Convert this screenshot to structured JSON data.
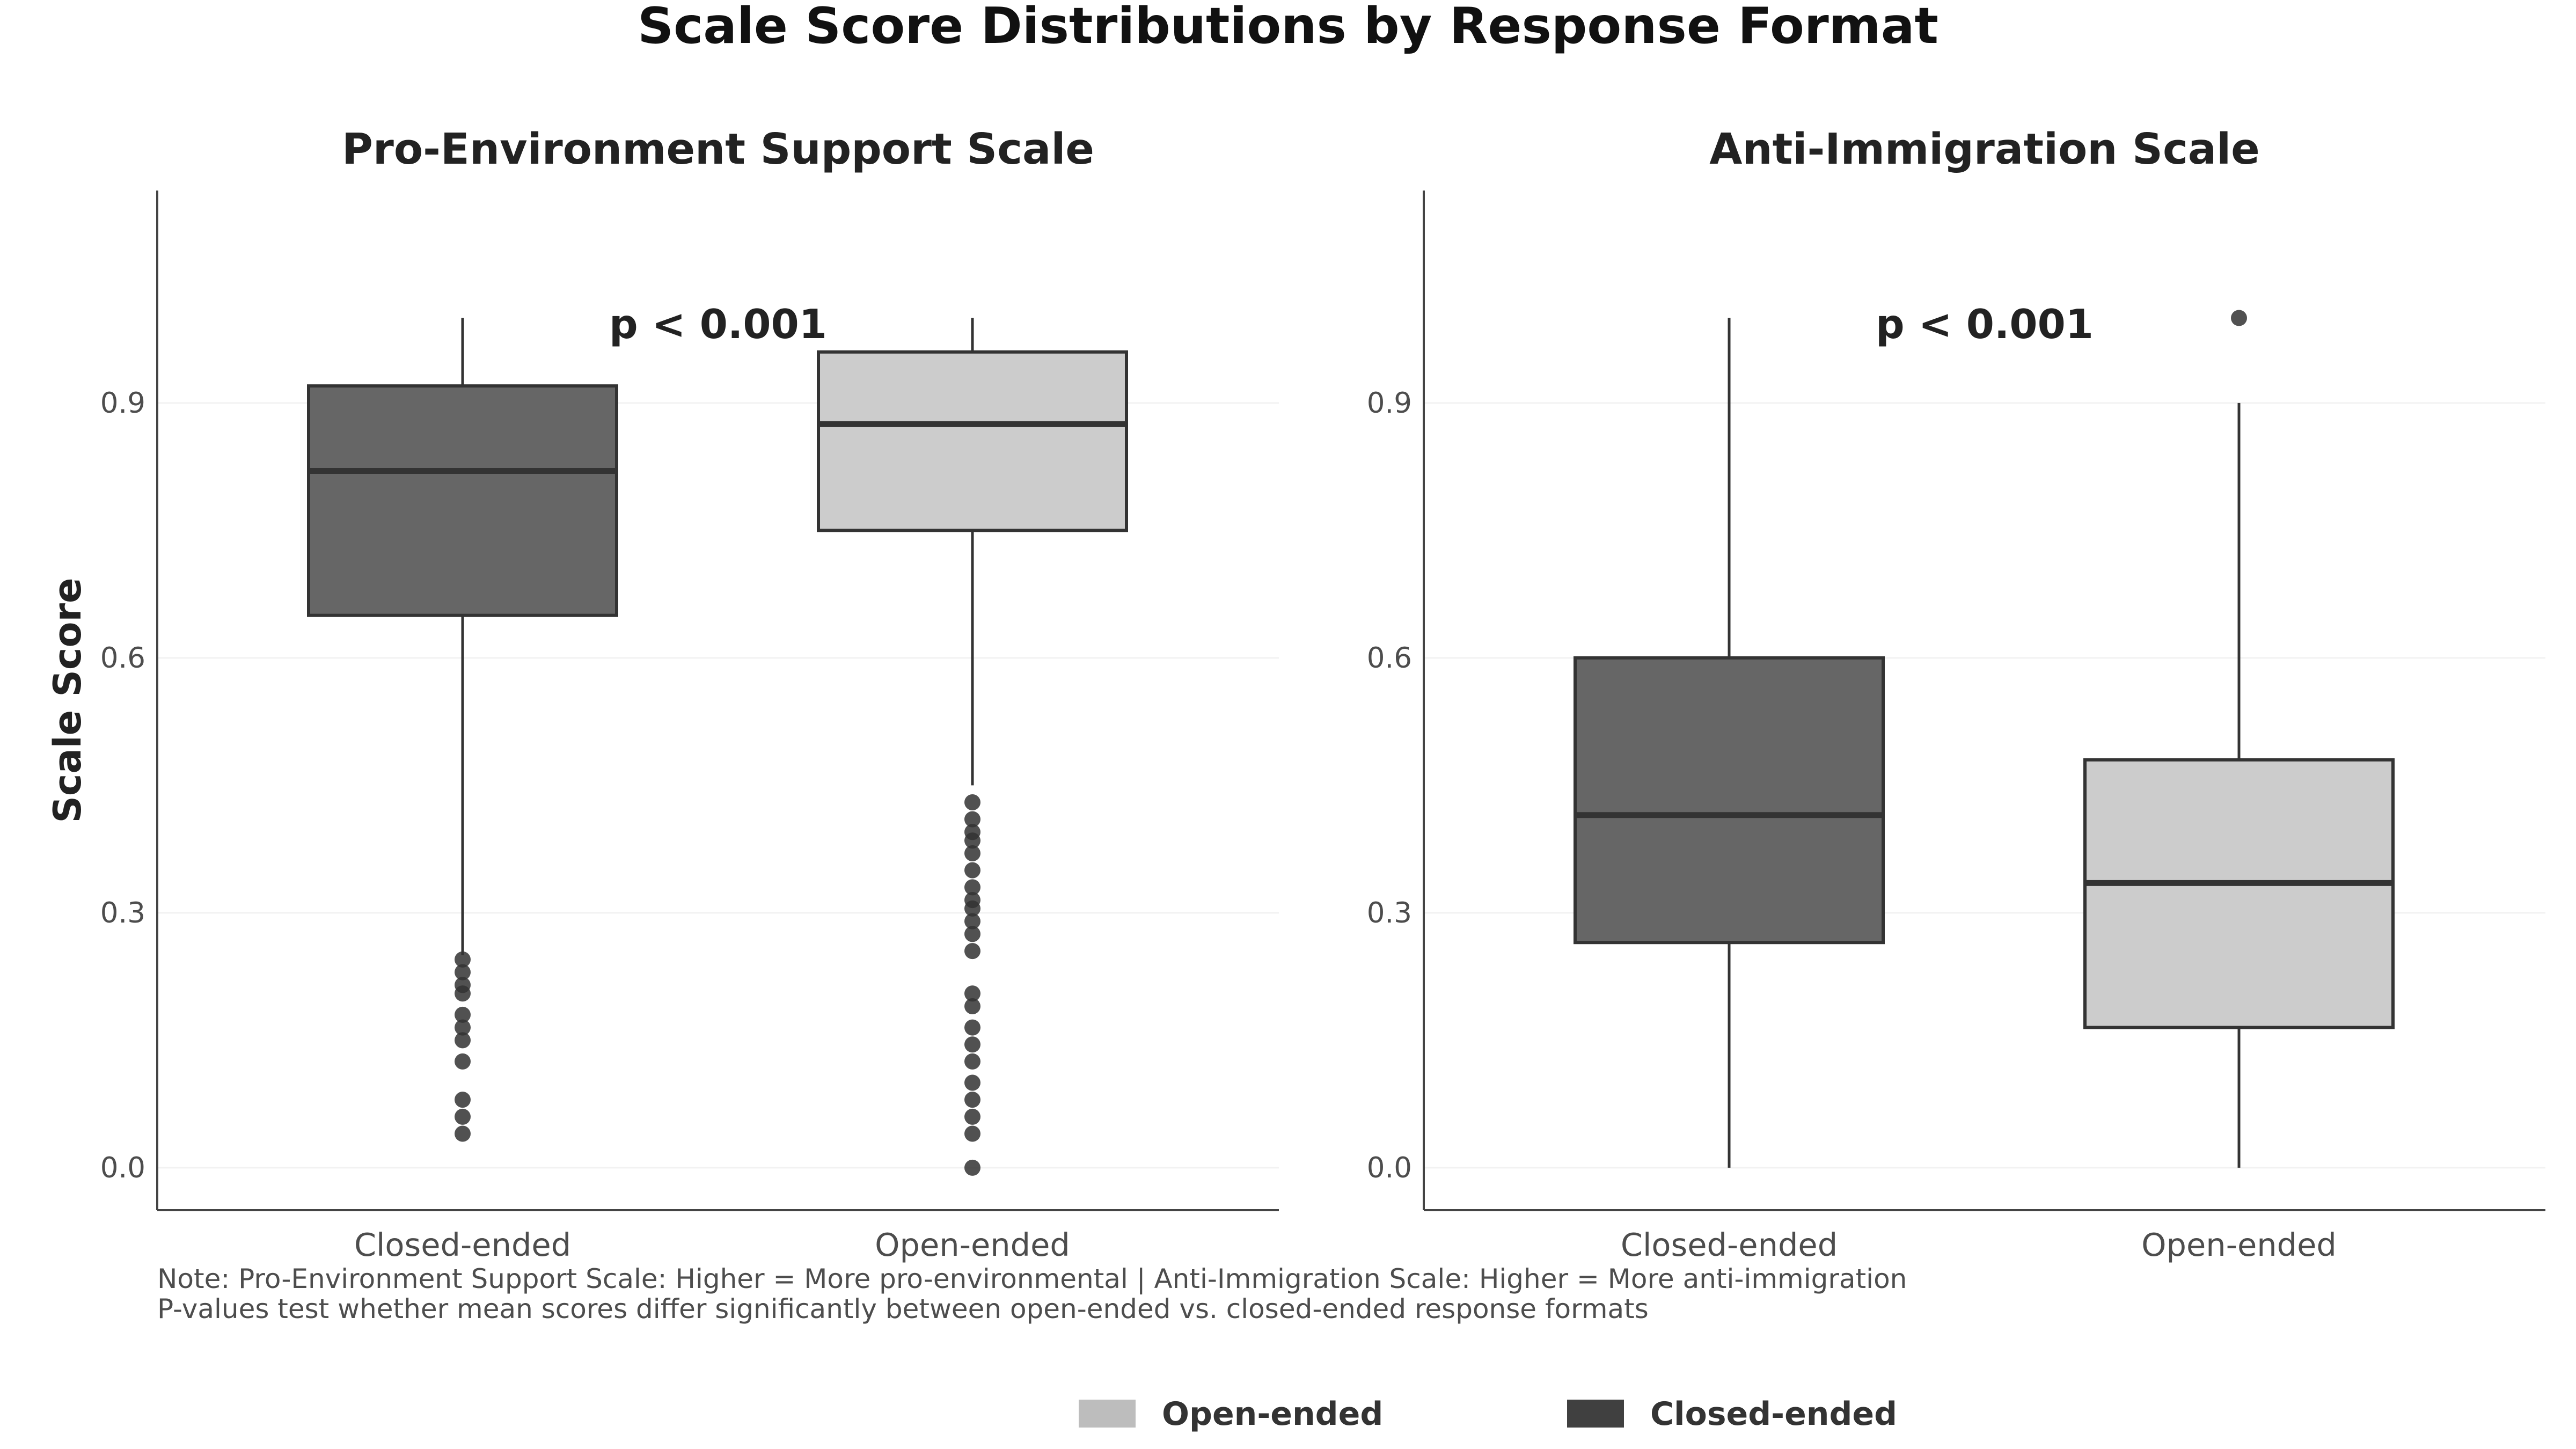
{
  "title": "Scale Score Distributions by Response Format",
  "ylabel": "Scale Score",
  "notes": [
    "Note: Pro-Environment Support Scale: Higher = More pro-environmental | Anti-Immigration Scale: Higher = More anti-immigration",
    "P-values test whether mean scores differ significantly between open-ended vs. closed-ended response formats"
  ],
  "legend": {
    "placement": "bottom-center",
    "items": [
      {
        "label": "Open-ended",
        "color": "#bdbdbd"
      },
      {
        "label": "Closed-ended",
        "color": "#404040"
      }
    ]
  },
  "colors": {
    "closed_fill": "#666666",
    "open_fill": "#cccccc",
    "box_stroke": "#333333",
    "outlier": "#333333",
    "grid": "#f2f2f2"
  },
  "chart_data": [
    {
      "type": "boxplot",
      "title": "Pro-Environment Support Scale",
      "annotation": "p < 0.001",
      "ylim": [
        -0.05,
        1.15
      ],
      "yticks": [
        "0.0",
        "0.3",
        "0.6",
        "0.9"
      ],
      "grid": true,
      "categories": [
        "Closed-ended",
        "Open-ended"
      ],
      "boxes": [
        {
          "category": "Closed-ended",
          "whisker_low": 0.25,
          "q1": 0.65,
          "median": 0.82,
          "q3": 0.92,
          "whisker_high": 1.0,
          "outliers": [
            0.04,
            0.06,
            0.08,
            0.125,
            0.15,
            0.165,
            0.18,
            0.205,
            0.215,
            0.23,
            0.245
          ]
        },
        {
          "category": "Open-ended",
          "whisker_low": 0.45,
          "q1": 0.75,
          "median": 0.875,
          "q3": 0.96,
          "whisker_high": 1.0,
          "outliers": [
            0.0,
            0.04,
            0.06,
            0.08,
            0.1,
            0.125,
            0.145,
            0.165,
            0.19,
            0.205,
            0.255,
            0.275,
            0.29,
            0.305,
            0.315,
            0.33,
            0.35,
            0.37,
            0.385,
            0.395,
            0.41,
            0.43
          ]
        }
      ]
    },
    {
      "type": "boxplot",
      "title": "Anti-Immigration Scale",
      "annotation": "p < 0.001",
      "ylim": [
        -0.05,
        1.15
      ],
      "yticks": [
        "0.0",
        "0.3",
        "0.6",
        "0.9"
      ],
      "grid": true,
      "categories": [
        "Closed-ended",
        "Open-ended"
      ],
      "boxes": [
        {
          "category": "Closed-ended",
          "whisker_low": 0.0,
          "q1": 0.265,
          "median": 0.415,
          "q3": 0.6,
          "whisker_high": 1.0,
          "outliers": []
        },
        {
          "category": "Open-ended",
          "whisker_low": 0.0,
          "q1": 0.165,
          "median": 0.335,
          "q3": 0.48,
          "whisker_high": 0.9,
          "outliers": [
            1.0
          ]
        }
      ]
    }
  ]
}
